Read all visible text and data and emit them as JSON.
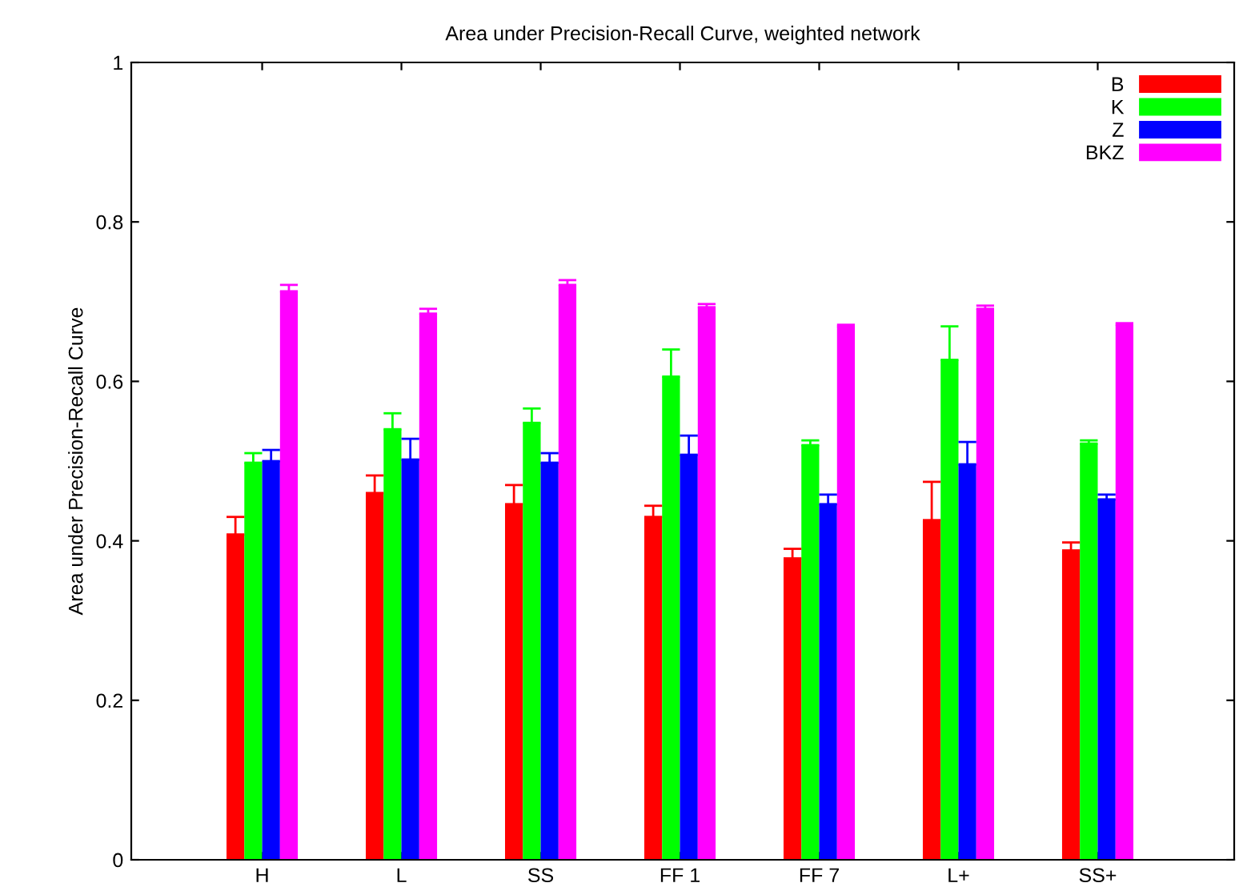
{
  "chart_data": {
    "type": "bar",
    "title": "Area under Precision-Recall Curve, weighted network",
    "ylabel": "Area under Precision-Recall Curve",
    "categories": [
      "H",
      "L",
      "SS",
      "FF 1",
      "FF 7",
      "L+",
      "SS+"
    ],
    "ylim": [
      0,
      1
    ],
    "yticks": [
      0,
      0.2,
      0.4,
      0.6,
      0.8,
      1
    ],
    "grid": false,
    "legend": "top right",
    "series": [
      {
        "name": "B",
        "color": "#ff0000",
        "values": [
          0.408,
          0.46,
          0.446,
          0.43,
          0.378,
          0.426,
          0.388
        ],
        "errors": [
          [
            0.408,
            0.43
          ],
          [
            0.46,
            0.482
          ],
          [
            0.446,
            0.47
          ],
          [
            0.43,
            0.444
          ],
          [
            0.378,
            0.39
          ],
          [
            0.426,
            0.474
          ],
          [
            0.388,
            0.398
          ]
        ]
      },
      {
        "name": "K",
        "color": "#00ff00",
        "values": [
          0.498,
          0.54,
          0.548,
          0.606,
          0.52,
          0.627,
          0.522
        ],
        "errors": [
          [
            0.498,
            0.51
          ],
          [
            0.54,
            0.56
          ],
          [
            0.548,
            0.566
          ],
          [
            0.606,
            0.64
          ],
          [
            0.52,
            0.526
          ],
          [
            0.627,
            0.669
          ],
          [
            0.522,
            0.526
          ]
        ]
      },
      {
        "name": "Z",
        "color": "#0000ff",
        "values": [
          0.5,
          0.502,
          0.498,
          0.508,
          0.446,
          0.496,
          0.452
        ],
        "errors": [
          [
            0.5,
            0.514
          ],
          [
            0.502,
            0.528
          ],
          [
            0.498,
            0.51
          ],
          [
            0.508,
            0.532
          ],
          [
            0.446,
            0.458
          ],
          [
            0.496,
            0.524
          ],
          [
            0.452,
            0.458
          ]
        ]
      },
      {
        "name": "BKZ",
        "color": "#ff00ff",
        "values": [
          0.713,
          0.685,
          0.721,
          0.693,
          0.669,
          0.691,
          0.671
        ],
        "errors": [
          [
            0.713,
            0.721
          ],
          [
            0.685,
            0.691
          ],
          [
            0.721,
            0.727
          ],
          [
            0.693,
            0.697
          ],
          [
            0.669,
            0.671
          ],
          [
            0.691,
            0.695
          ],
          [
            0.671,
            0.673
          ]
        ]
      }
    ]
  }
}
